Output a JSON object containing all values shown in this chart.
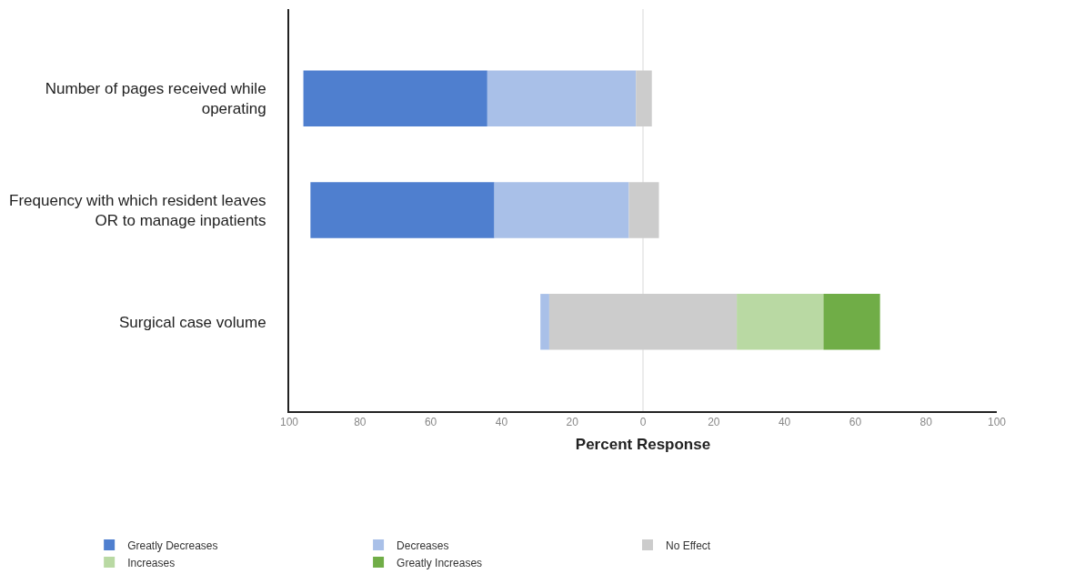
{
  "chart_data": {
    "type": "bar",
    "orientation": "horizontal",
    "xlabel": "Percent Response",
    "categories": [
      "Number of pages received while operating",
      "Frequency with which resident leaves OR to manage inpatients",
      "Surgical case volume"
    ],
    "series": [
      {
        "name": "Greatly Decreases",
        "color": "#4f7fcf",
        "base": [
          -96,
          -94,
          null
        ],
        "values": [
          52,
          52,
          null
        ]
      },
      {
        "name": "Decreases",
        "color": "#a9c0e8",
        "base": [
          -44,
          -42,
          -29
        ],
        "values": [
          42,
          38,
          2.5
        ]
      },
      {
        "name": "No Effect",
        "color": "#cccccc",
        "base": [
          -2,
          -4,
          -26.5
        ],
        "values": [
          4.5,
          8.5,
          53
        ]
      },
      {
        "name": "Increases",
        "color": "#b9d9a3",
        "base": [
          null,
          null,
          26.5
        ],
        "values": [
          null,
          null,
          24.5
        ]
      },
      {
        "name": "Greatly Increases",
        "color": "#70ad47",
        "base": [
          null,
          null,
          51
        ],
        "values": [
          null,
          null,
          16
        ]
      }
    ],
    "xlim": [
      -100,
      100
    ],
    "xticks": [
      {
        "value": -100,
        "label": "100"
      },
      {
        "value": -80,
        "label": "80"
      },
      {
        "value": -60,
        "label": "60"
      },
      {
        "value": -40,
        "label": "40"
      },
      {
        "value": -20,
        "label": "20"
      },
      0,
      {
        "value": 20,
        "label": "20"
      },
      {
        "value": 40,
        "label": "40"
      },
      {
        "value": 60,
        "label": "60"
      },
      {
        "value": 80,
        "label": "80"
      },
      {
        "value": 100,
        "label": "100"
      }
    ],
    "ref_lines": [
      {
        "axis": "x",
        "value": 0,
        "color": "#d9d9d9"
      }
    ],
    "legend": "bottom"
  }
}
